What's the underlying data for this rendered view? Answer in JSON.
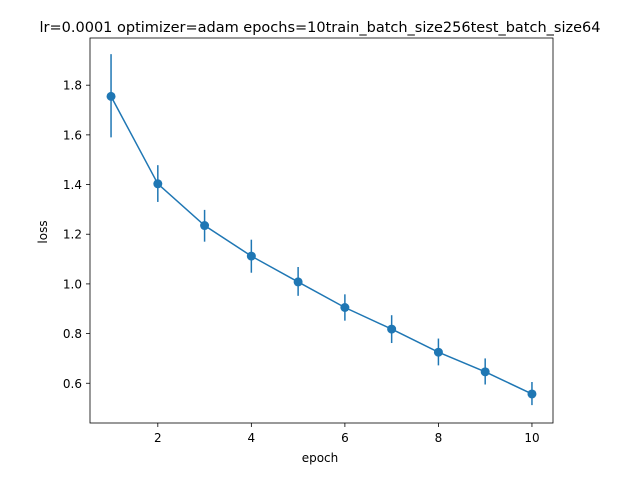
{
  "chart_data": {
    "type": "line",
    "title": "lr=0.0001 optimizer=adam epochs=10train_batch_size256test_batch_size64",
    "xlabel": "epoch",
    "ylabel": "loss",
    "xlim": [
      0.55,
      10.45
    ],
    "ylim": [
      0.44,
      1.99
    ],
    "xticks": [
      2,
      4,
      6,
      8,
      10
    ],
    "xtick_labels": [
      "2",
      "4",
      "6",
      "8",
      "10"
    ],
    "yticks": [
      0.6,
      0.8,
      1.0,
      1.2,
      1.4,
      1.6,
      1.8
    ],
    "ytick_labels": [
      "0.6",
      "0.8",
      "1.0",
      "1.2",
      "1.4",
      "1.6",
      "1.8"
    ],
    "grid": false,
    "series": [
      {
        "color": "#1f77b4",
        "marker": "circle",
        "error_bars": true,
        "x": [
          1,
          2,
          3,
          4,
          5,
          6,
          7,
          8,
          9,
          10
        ],
        "y": [
          1.755,
          1.403,
          1.235,
          1.112,
          1.008,
          0.905,
          0.818,
          0.725,
          0.646,
          0.557
        ],
        "err_low": [
          1.59,
          1.33,
          1.17,
          1.045,
          0.952,
          0.852,
          0.762,
          0.672,
          0.595,
          0.512
        ],
        "err_high": [
          1.925,
          1.478,
          1.298,
          1.178,
          1.068,
          0.958,
          0.874,
          0.78,
          0.7,
          0.605
        ]
      }
    ]
  }
}
